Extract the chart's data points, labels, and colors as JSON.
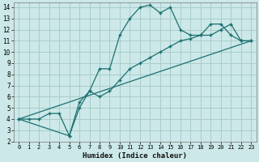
{
  "xlabel": "Humidex (Indice chaleur)",
  "bg_color": "#cce8e8",
  "grid_color": "#aacccc",
  "line_color": "#1a7070",
  "xlim": [
    -0.5,
    23.5
  ],
  "ylim": [
    2,
    14.4
  ],
  "xticks": [
    0,
    1,
    2,
    3,
    4,
    5,
    6,
    7,
    8,
    9,
    10,
    11,
    12,
    13,
    14,
    15,
    16,
    17,
    18,
    19,
    20,
    21,
    22,
    23
  ],
  "yticks": [
    2,
    3,
    4,
    5,
    6,
    7,
    8,
    9,
    10,
    11,
    12,
    13,
    14
  ],
  "line1_x": [
    0,
    1,
    2,
    3,
    4,
    5,
    6,
    7,
    8,
    9,
    10,
    11,
    12,
    13,
    14,
    15,
    16,
    17,
    18,
    19,
    20,
    21,
    22,
    23
  ],
  "line1_y": [
    4,
    4,
    4,
    4.5,
    4.5,
    2.5,
    5.5,
    6.5,
    8.5,
    8.5,
    11.5,
    13,
    14,
    14.2,
    13.5,
    14,
    12,
    11.5,
    11.5,
    12.5,
    12.5,
    11.5,
    11,
    11
  ],
  "line2_x": [
    0,
    5,
    6,
    7,
    8,
    9,
    10,
    11,
    12,
    13,
    14,
    15,
    16,
    17,
    18,
    19,
    20,
    21,
    22,
    23
  ],
  "line2_y": [
    4,
    2.5,
    5,
    6.5,
    6,
    6.5,
    7.5,
    8.5,
    9,
    9.5,
    10,
    10.5,
    11,
    11.2,
    11.5,
    11.5,
    12,
    12.5,
    11,
    11
  ],
  "line3_x": [
    0,
    23
  ],
  "line3_y": [
    4,
    11
  ]
}
